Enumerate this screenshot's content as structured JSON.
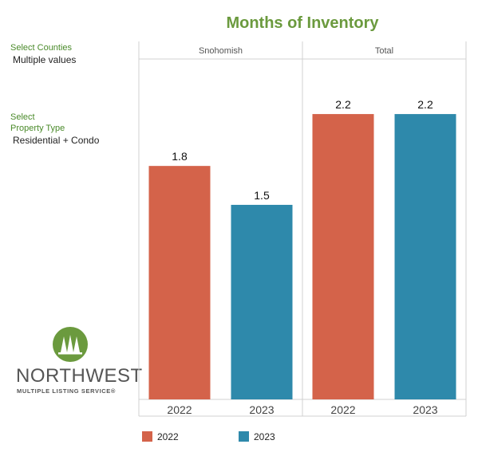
{
  "title": "Months of Inventory",
  "filters": {
    "counties_label": "Select Counties",
    "counties_value": "Multiple values",
    "property_label_line1": "Select",
    "property_label_line2": "Property Type",
    "property_value": "Residential + Condo"
  },
  "logo": {
    "name": "NORTHWEST",
    "subtitle": "MULTIPLE LISTING SERVICE®",
    "icon": "tree-logo-icon"
  },
  "colors": {
    "2022": "#d4634a",
    "2023": "#2e89ab",
    "title": "#6b9a3e"
  },
  "chart_data": {
    "type": "bar",
    "title": "Months of Inventory",
    "panels": [
      "Snohomish",
      "Total"
    ],
    "categories": [
      "2022",
      "2023"
    ],
    "series": [
      {
        "panel": "Snohomish",
        "values": [
          1.8,
          1.5
        ]
      },
      {
        "panel": "Total",
        "values": [
          2.2,
          2.2
        ]
      }
    ],
    "data_labels": [
      [
        "1.8",
        "1.5"
      ],
      [
        "2.2",
        "2.2"
      ]
    ],
    "ylim": [
      0,
      2.6
    ],
    "legend": {
      "position": "bottom-left",
      "entries": [
        "2022",
        "2023"
      ]
    }
  }
}
